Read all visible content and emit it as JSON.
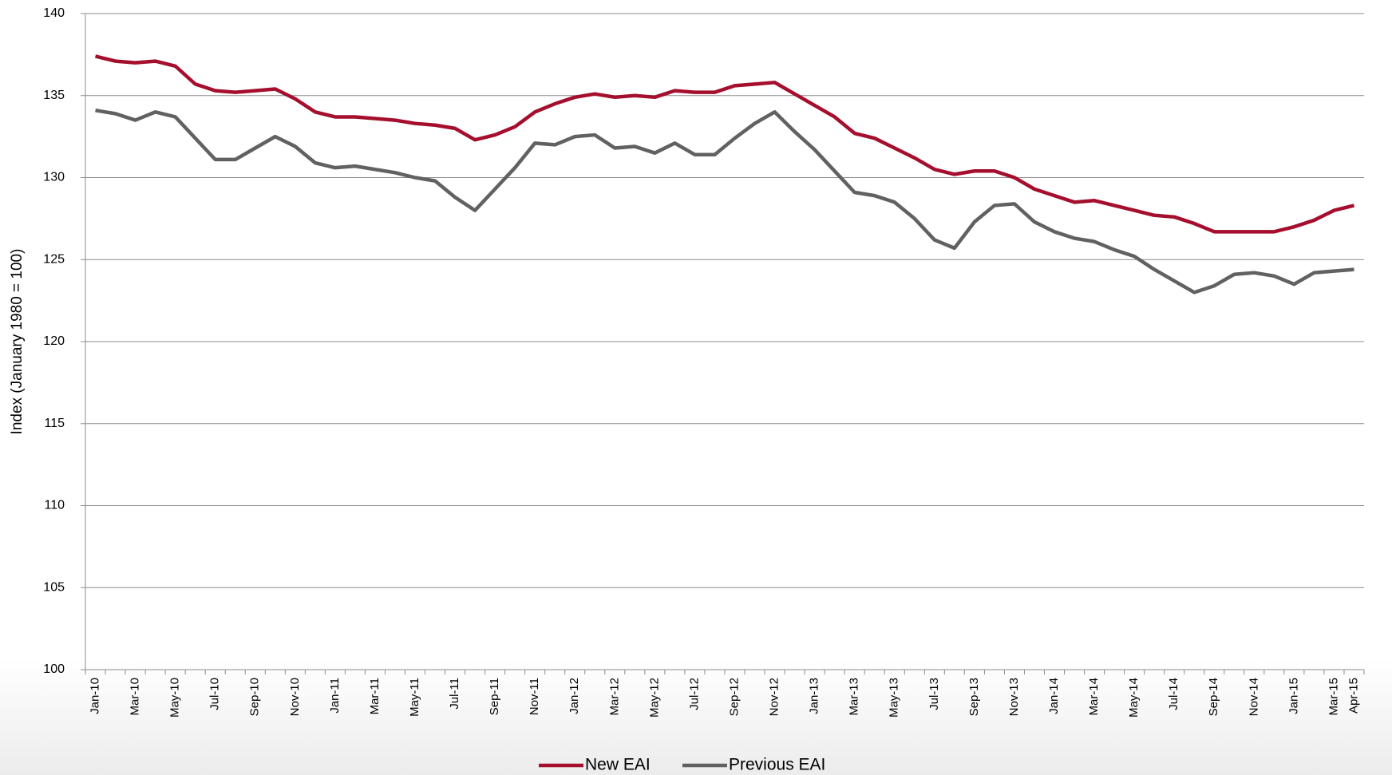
{
  "chart_data": {
    "type": "line",
    "categories": [
      "Jan-10",
      null,
      "Mar-10",
      null,
      "May-10",
      null,
      "Jul-10",
      null,
      "Sep-10",
      null,
      "Nov-10",
      null,
      "Jan-11",
      null,
      "Mar-11",
      null,
      "May-11",
      null,
      "Jul-11",
      null,
      "Sep-11",
      null,
      "Nov-11",
      null,
      "Jan-12",
      null,
      "Mar-12",
      null,
      "May-12",
      null,
      "Jul-12",
      null,
      "Sep-12",
      null,
      "Nov-12",
      null,
      "Jan-13",
      null,
      "Mar-13",
      null,
      "May-13",
      null,
      "Jul-13",
      null,
      "Sep-13",
      null,
      "Nov-13",
      null,
      "Jan-14",
      null,
      "Mar-14",
      null,
      "May-14",
      null,
      "Jul-14",
      null,
      "Sep-14",
      null,
      "Nov-14",
      null,
      "Jan-15",
      null,
      "Mar-15",
      "Apr-15"
    ],
    "series": [
      {
        "name": "New EAI",
        "color": "#a50f2d",
        "values": [
          137.4,
          137.1,
          137.0,
          137.1,
          136.8,
          135.7,
          135.3,
          135.2,
          135.3,
          135.4,
          134.8,
          134.0,
          133.7,
          133.7,
          133.6,
          133.5,
          133.3,
          133.2,
          133.0,
          132.3,
          132.6,
          133.1,
          134.0,
          134.5,
          134.9,
          135.1,
          134.9,
          135.0,
          134.9,
          135.3,
          135.2,
          135.2,
          135.6,
          135.7,
          135.8,
          135.1,
          134.4,
          133.7,
          132.7,
          132.4,
          131.8,
          131.2,
          130.5,
          130.2,
          130.4,
          130.4,
          130.0,
          129.3,
          128.9,
          128.5,
          128.6,
          128.3,
          128.0,
          127.7,
          127.6,
          127.2,
          126.7,
          126.7,
          126.7,
          126.7,
          127.0,
          127.4,
          128.0,
          128.3
        ]
      },
      {
        "name": "Previous EAI",
        "color": "#636063",
        "values": [
          134.1,
          133.9,
          133.5,
          134.0,
          133.7,
          132.4,
          131.1,
          131.1,
          131.8,
          132.5,
          131.9,
          130.9,
          130.6,
          130.7,
          130.5,
          130.3,
          130.0,
          129.8,
          128.8,
          128.0,
          129.3,
          130.6,
          132.1,
          132.0,
          132.5,
          132.6,
          131.8,
          131.9,
          131.5,
          132.1,
          131.4,
          131.4,
          132.4,
          133.3,
          134.0,
          132.8,
          131.7,
          130.4,
          129.1,
          128.9,
          128.5,
          127.5,
          126.2,
          125.7,
          127.3,
          128.3,
          128.4,
          127.3,
          126.7,
          126.3,
          126.1,
          125.6,
          125.2,
          124.4,
          123.7,
          123.0,
          123.4,
          124.1,
          124.2,
          124.0,
          123.5,
          124.2,
          124.3,
          124.4
        ]
      }
    ],
    "y_label": "Index (January 1980 = 100)",
    "ylim": [
      100,
      140
    ],
    "yticks": [
      100,
      105,
      110,
      115,
      120,
      125,
      130,
      135,
      140
    ],
    "grid": true,
    "legend": "bottom"
  }
}
